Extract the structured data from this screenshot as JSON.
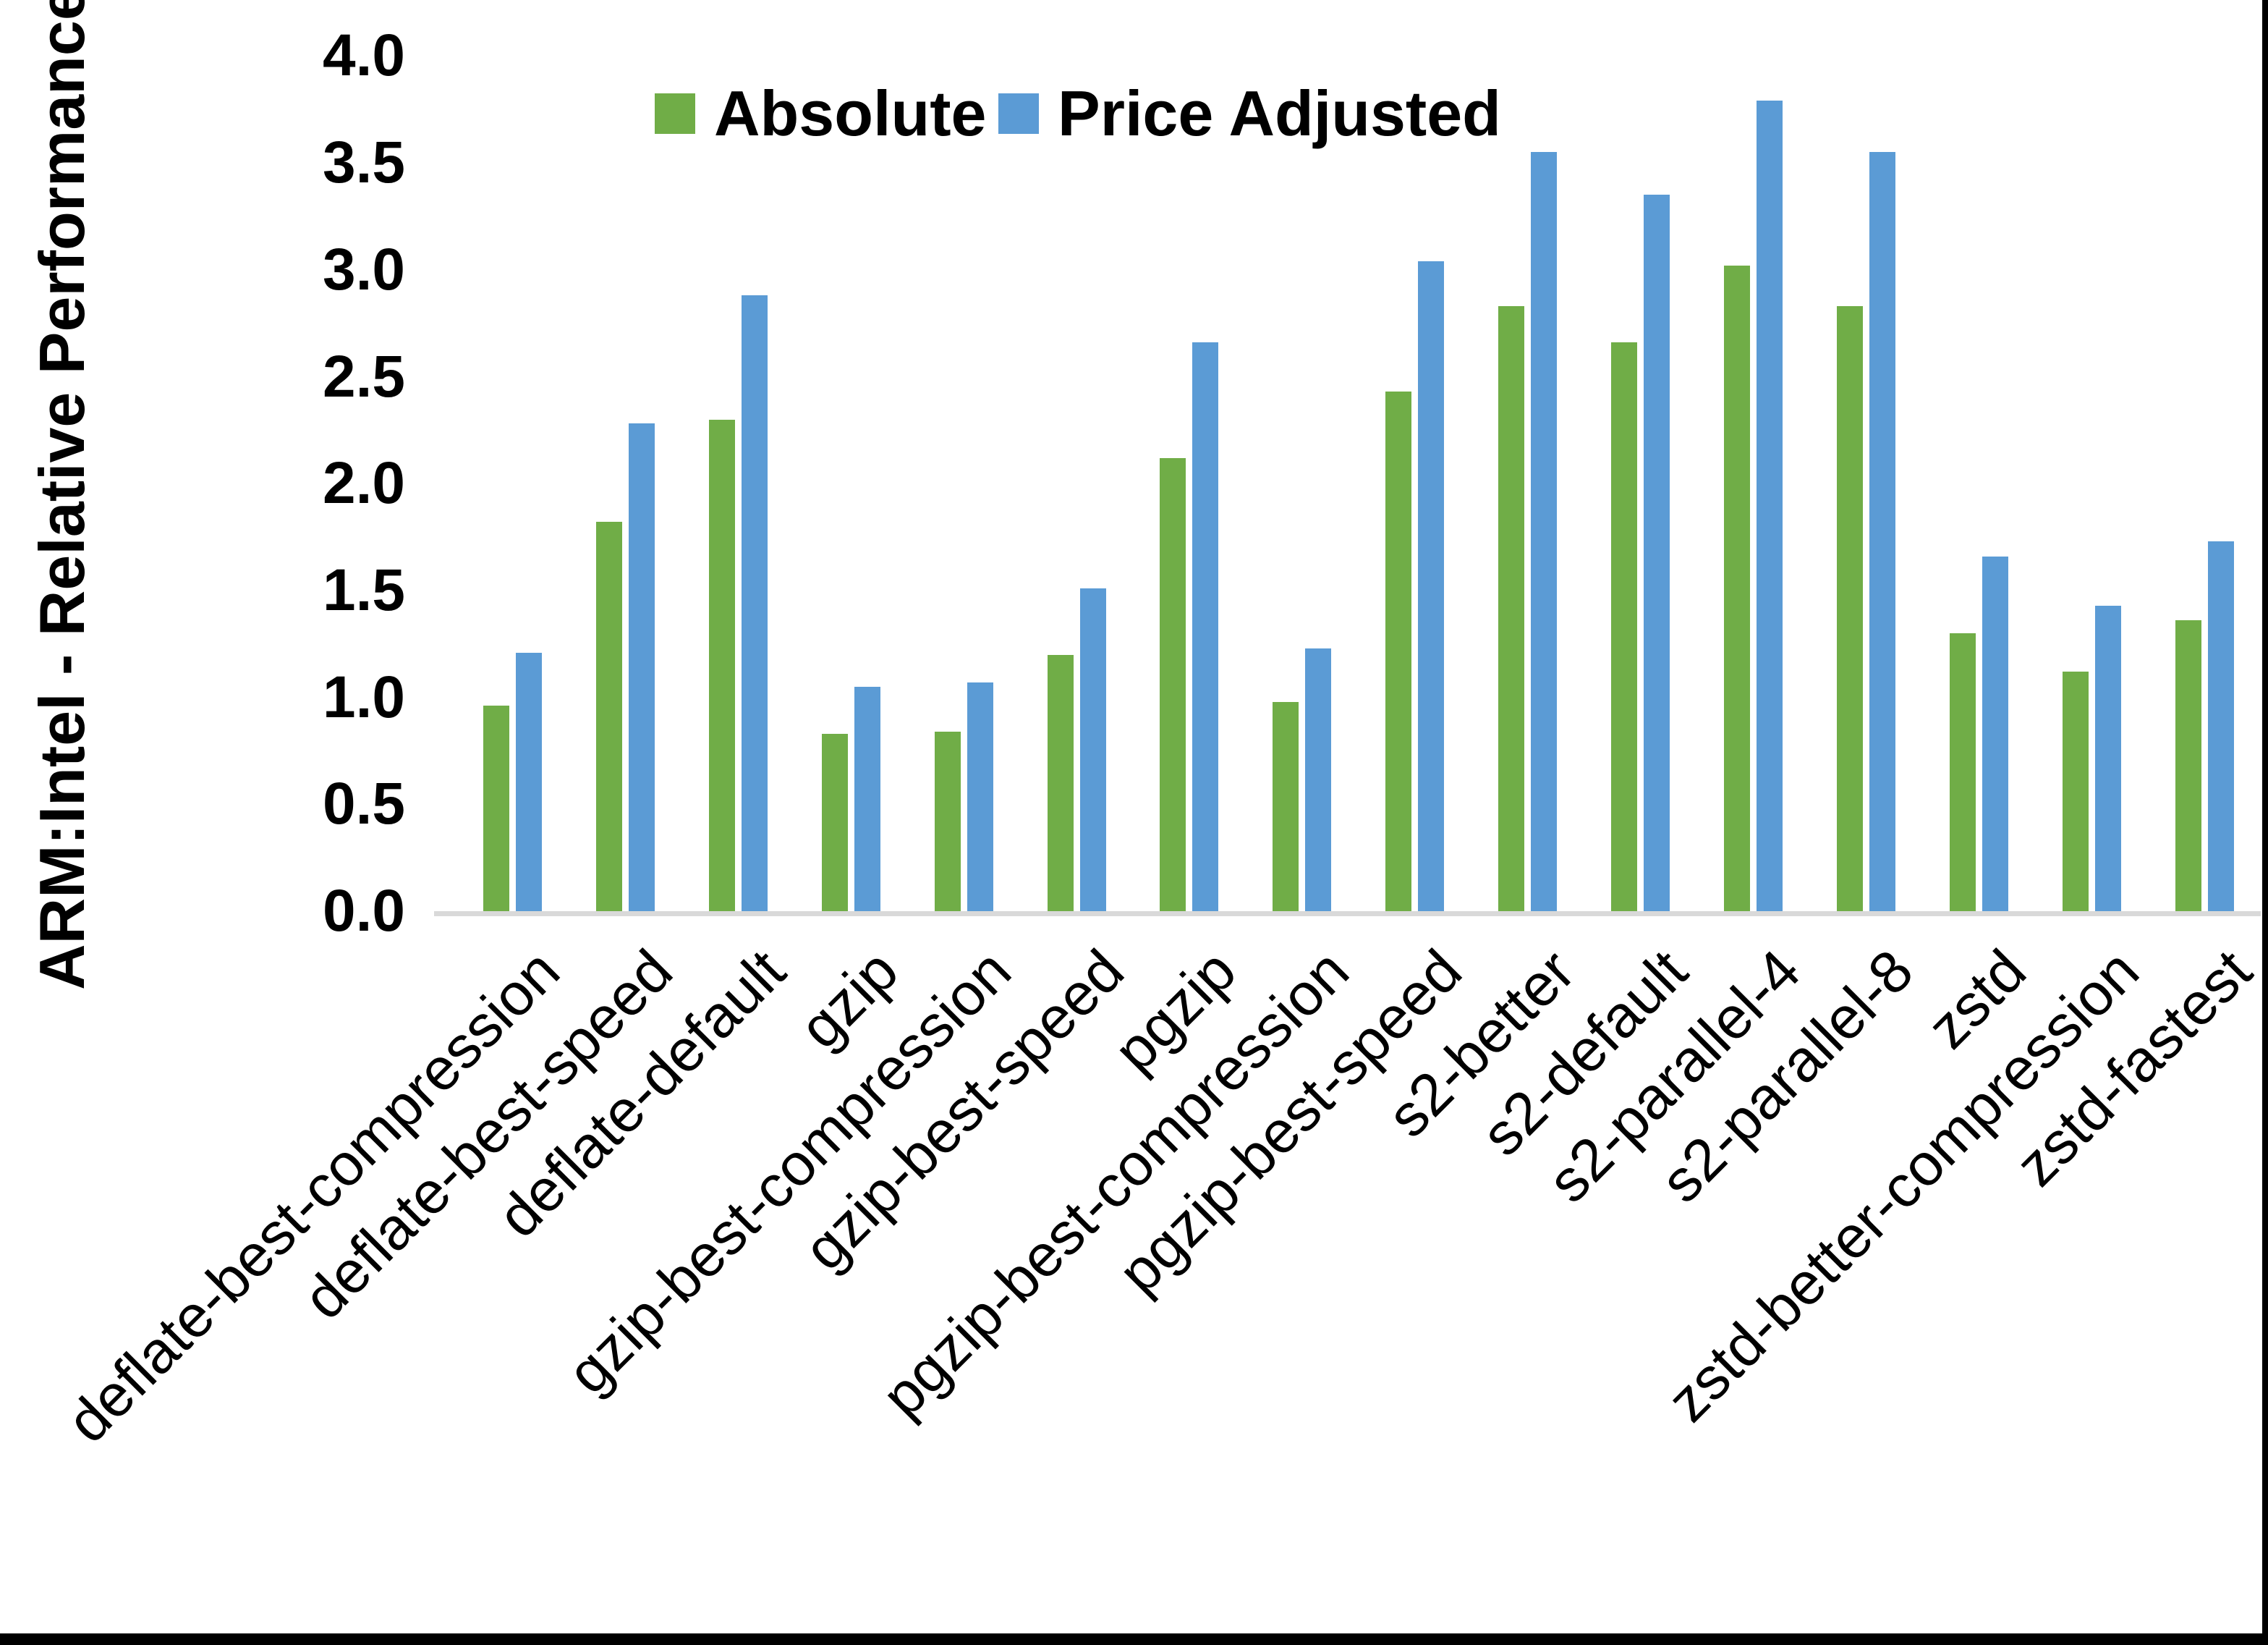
{
  "chart_data": {
    "type": "bar",
    "title": "",
    "xlabel": "",
    "ylabel": "ARM:Intel - Relative Performance",
    "ylim": [
      0.0,
      4.0
    ],
    "ytick_interval": 0.5,
    "yticks": [
      "4.0",
      "3.5",
      "3.0",
      "2.5",
      "2.0",
      "1.5",
      "1.0",
      "0.5",
      "0.0"
    ],
    "grid": false,
    "legend_position": "top-center",
    "categories": [
      "deflate-best-compression",
      "deflate-best-speed",
      "deflate-default",
      "gzip",
      "gzip-best-compression",
      "gzip-best-speed",
      "pgzip",
      "pgzip-best-compression",
      "pgzip-best-speed",
      "s2-better",
      "s2-default",
      "s2-parallel-4",
      "s2-parallel-8",
      "zstd",
      "zstd-better-compression",
      "zstd-fastest"
    ],
    "series": [
      {
        "name": "Absolute",
        "color": "#70AD47",
        "values": [
          0.96,
          1.82,
          2.3,
          0.83,
          0.84,
          1.2,
          2.12,
          0.98,
          2.43,
          2.83,
          2.66,
          3.02,
          2.83,
          1.3,
          1.12,
          1.36
        ]
      },
      {
        "name": "Price Adjusted",
        "color": "#5B9BD5",
        "values": [
          1.21,
          2.28,
          2.88,
          1.05,
          1.07,
          1.51,
          2.66,
          1.23,
          3.04,
          3.55,
          3.35,
          3.79,
          3.55,
          1.66,
          1.43,
          1.73
        ]
      }
    ]
  },
  "colors": {
    "absolute": "#70AD47",
    "price_adjusted": "#5B9BD5",
    "axis_line": "#D9D9D9",
    "text": "#000000",
    "frame_border": "#000000",
    "background": "#FFFFFF"
  }
}
